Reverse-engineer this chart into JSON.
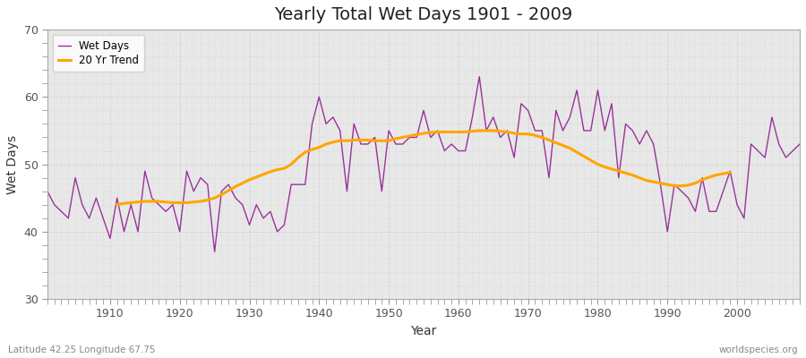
{
  "title": "Yearly Total Wet Days 1901 - 2009",
  "xlabel": "Year",
  "ylabel": "Wet Days",
  "bottom_left_label": "Latitude 42.25 Longitude 67.75",
  "bottom_right_label": "worldspecies.org",
  "legend_entries": [
    "Wet Days",
    "20 Yr Trend"
  ],
  "wet_days_color": "#993399",
  "trend_color": "#FFA500",
  "fig_bg_color": "#FFFFFF",
  "plot_bg_color": "#E8E8E8",
  "ylim": [
    30,
    70
  ],
  "xlim": [
    1901,
    2009
  ],
  "yticks": [
    30,
    40,
    50,
    60,
    70
  ],
  "xticks": [
    1910,
    1920,
    1930,
    1940,
    1950,
    1960,
    1970,
    1980,
    1990,
    2000
  ],
  "years": [
    1901,
    1902,
    1903,
    1904,
    1905,
    1906,
    1907,
    1908,
    1909,
    1910,
    1911,
    1912,
    1913,
    1914,
    1915,
    1916,
    1917,
    1918,
    1919,
    1920,
    1921,
    1922,
    1923,
    1924,
    1925,
    1926,
    1927,
    1928,
    1929,
    1930,
    1931,
    1932,
    1933,
    1934,
    1935,
    1936,
    1937,
    1938,
    1939,
    1940,
    1941,
    1942,
    1943,
    1944,
    1945,
    1946,
    1947,
    1948,
    1949,
    1950,
    1951,
    1952,
    1953,
    1954,
    1955,
    1956,
    1957,
    1958,
    1959,
    1960,
    1961,
    1962,
    1963,
    1964,
    1965,
    1966,
    1967,
    1968,
    1969,
    1970,
    1971,
    1972,
    1973,
    1974,
    1975,
    1976,
    1977,
    1978,
    1979,
    1980,
    1981,
    1982,
    1983,
    1984,
    1985,
    1986,
    1987,
    1988,
    1989,
    1990,
    1991,
    1992,
    1993,
    1994,
    1995,
    1996,
    1997,
    1998,
    1999,
    2000,
    2001,
    2002,
    2003,
    2004,
    2005,
    2006,
    2007,
    2008,
    2009
  ],
  "wet_days": [
    46,
    44,
    43,
    42,
    48,
    44,
    42,
    45,
    42,
    39,
    45,
    40,
    44,
    40,
    49,
    45,
    44,
    43,
    44,
    40,
    49,
    46,
    48,
    47,
    37,
    46,
    47,
    45,
    44,
    41,
    44,
    42,
    43,
    40,
    41,
    47,
    47,
    47,
    56,
    60,
    56,
    57,
    55,
    46,
    56,
    53,
    53,
    54,
    46,
    55,
    53,
    53,
    54,
    54,
    58,
    54,
    55,
    52,
    53,
    52,
    52,
    57,
    63,
    55,
    57,
    54,
    55,
    51,
    59,
    58,
    55,
    55,
    48,
    58,
    55,
    57,
    61,
    55,
    55,
    61,
    55,
    59,
    48,
    56,
    55,
    53,
    55,
    53,
    47,
    40,
    47,
    46,
    45,
    43,
    48,
    43,
    43,
    46,
    49,
    44,
    42,
    53,
    52,
    51,
    57,
    53,
    51,
    52,
    53
  ],
  "trend": [
    null,
    null,
    null,
    null,
    null,
    null,
    null,
    null,
    null,
    null,
    44.0,
    44.2,
    44.3,
    44.4,
    44.5,
    44.5,
    44.5,
    44.4,
    44.3,
    44.3,
    44.3,
    44.4,
    44.5,
    44.7,
    45.0,
    45.5,
    46.1,
    46.7,
    47.2,
    47.7,
    48.1,
    48.5,
    48.9,
    49.2,
    49.4,
    50.0,
    51.0,
    51.8,
    52.2,
    52.5,
    53.0,
    53.3,
    53.5,
    53.5,
    53.6,
    53.6,
    53.6,
    53.5,
    53.5,
    53.5,
    53.8,
    54.0,
    54.2,
    54.4,
    54.6,
    54.7,
    54.8,
    54.8,
    54.8,
    54.8,
    54.8,
    54.9,
    55.0,
    55.0,
    55.0,
    54.9,
    54.8,
    54.6,
    54.5,
    54.5,
    54.3,
    54.0,
    53.6,
    53.2,
    52.8,
    52.4,
    51.8,
    51.2,
    50.6,
    50.0,
    49.6,
    49.3,
    49.0,
    48.7,
    48.4,
    48.0,
    47.6,
    47.4,
    47.2,
    47.0,
    46.8,
    46.8,
    46.9,
    47.2,
    47.7,
    48.1,
    48.4,
    48.6,
    48.8,
    null,
    null,
    null,
    null,
    null,
    null,
    null,
    null,
    null,
    null
  ]
}
